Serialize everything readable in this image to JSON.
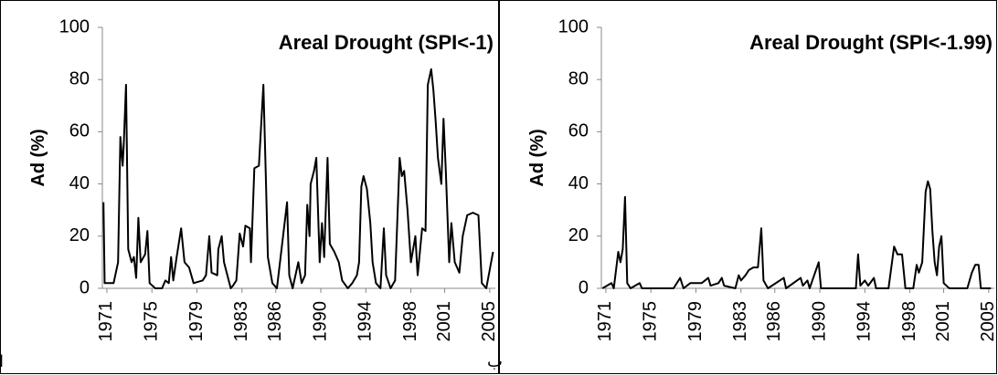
{
  "chart_data": [
    {
      "type": "line",
      "title": "Areal Drought (SPI<-1)",
      "ylabel": "Ad (%)",
      "panel_label": "الف",
      "color": "#000000",
      "xlim": [
        1970.6,
        2005.5
      ],
      "xticks": [
        1971,
        1975,
        1979,
        1983,
        1986,
        1990,
        1994,
        1998,
        2001,
        2005
      ],
      "ylim": [
        0,
        100
      ],
      "yticks": [
        0,
        20,
        40,
        60,
        80,
        100
      ],
      "x": [
        1970.7,
        1970.8,
        1971.6,
        1972.0,
        1972.2,
        1972.4,
        1972.5,
        1972.7,
        1972.9,
        1973.2,
        1973.4,
        1973.6,
        1973.8,
        1974.0,
        1974.4,
        1974.6,
        1974.8,
        1975.3,
        1975.9,
        1976.2,
        1976.5,
        1976.7,
        1976.9,
        1977.2,
        1977.6,
        1977.9,
        1978.3,
        1978.7,
        1979.5,
        1979.8,
        1980.1,
        1980.3,
        1980.8,
        1980.9,
        1981.2,
        1981.4,
        1981.7,
        1982.0,
        1982.2,
        1982.5,
        1982.8,
        1983.1,
        1983.3,
        1983.7,
        1983.8,
        1984.1,
        1984.5,
        1984.9,
        1985.1,
        1985.3,
        1985.7,
        1986.1,
        1987.0,
        1987.2,
        1987.5,
        1988.0,
        1988.3,
        1988.6,
        1988.8,
        1989.0,
        1989.1,
        1989.4,
        1989.6,
        1989.9,
        1990.1,
        1990.3,
        1990.6,
        1990.8,
        1991.2,
        1991.6,
        1991.9,
        1992.4,
        1992.8,
        1993.2,
        1993.4,
        1993.6,
        1993.8,
        1994.1,
        1994.4,
        1994.6,
        1994.9,
        1995.3,
        1995.6,
        1995.8,
        1996.2,
        1996.6,
        1997.0,
        1997.2,
        1997.4,
        1997.7,
        1998.0,
        1998.4,
        1998.6,
        1999.0,
        1999.3,
        1999.5,
        1999.8,
        2000.0,
        2000.2,
        2000.4,
        2000.7,
        2000.9,
        2001.1,
        2001.4,
        2001.6,
        2001.9,
        2002.3,
        2002.6,
        2003.0,
        2003.5,
        2004.0,
        2004.3,
        2004.7,
        2005.3
      ],
      "values": [
        33,
        2,
        2,
        10,
        58,
        47,
        55,
        78,
        15,
        10,
        12,
        4,
        27,
        10,
        13,
        22,
        2,
        0,
        0,
        3,
        2,
        12,
        3,
        12,
        23,
        10,
        8,
        2,
        3,
        5,
        20,
        6,
        5,
        15,
        20,
        10,
        5,
        0,
        1,
        3,
        21,
        16,
        24,
        23,
        10,
        46,
        47,
        78,
        45,
        12,
        2,
        0,
        33,
        5,
        0,
        10,
        2,
        5,
        32,
        20,
        40,
        45,
        50,
        10,
        25,
        12,
        50,
        17,
        14,
        10,
        3,
        0,
        2,
        5,
        10,
        39,
        43,
        38,
        25,
        10,
        2,
        0,
        23,
        5,
        0,
        3,
        50,
        43,
        45,
        30,
        10,
        20,
        5,
        23,
        22,
        78,
        84,
        76,
        64,
        50,
        40,
        65,
        45,
        10,
        25,
        10,
        6,
        20,
        28,
        29,
        28,
        2,
        0,
        14
      ]
    },
    {
      "type": "line",
      "title": "Areal Drought (SPI<-1.99)",
      "ylabel": "Ad (%)",
      "panel_label": "ب",
      "color": "#000000",
      "xlim": [
        1970.6,
        2005.5
      ],
      "xticks": [
        1971,
        1975,
        1979,
        1983,
        1986,
        1990,
        1994,
        1998,
        2001,
        2005
      ],
      "ylim": [
        0,
        100
      ],
      "yticks": [
        0,
        20,
        40,
        60,
        80,
        100
      ],
      "x": [
        1970.7,
        1971.5,
        1971.7,
        1972.1,
        1972.3,
        1972.5,
        1972.7,
        1972.9,
        1973.2,
        1974.0,
        1974.2,
        1977.0,
        1977.3,
        1977.6,
        1977.9,
        1978.5,
        1979.5,
        1980.1,
        1980.3,
        1981.0,
        1981.3,
        1981.5,
        1982.5,
        1982.8,
        1983.0,
        1983.4,
        1983.7,
        1984.1,
        1984.5,
        1984.8,
        1985.0,
        1985.4,
        1986.8,
        1987.0,
        1988.3,
        1988.5,
        1988.9,
        1989.1,
        1989.9,
        1990.1,
        1993.2,
        1993.4,
        1993.6,
        1994.0,
        1994.3,
        1994.8,
        1995.0,
        1996.1,
        1996.6,
        1996.9,
        1997.3,
        1997.6,
        1998.3,
        1998.6,
        1998.8,
        1999.1,
        1999.4,
        1999.6,
        1999.8,
        2000.0,
        2000.2,
        2000.4,
        2000.6,
        2000.8,
        2001.0,
        2001.5,
        2003.1,
        2003.5,
        2003.8,
        2004.1,
        2004.3,
        2005.2
      ],
      "values": [
        0,
        2,
        0,
        14,
        10,
        15,
        35,
        2,
        0,
        2,
        0,
        0,
        2,
        4,
        0,
        2,
        2,
        4,
        1,
        2,
        4,
        1,
        0,
        5,
        3,
        5,
        7,
        8,
        8,
        23,
        3,
        0,
        4,
        0,
        4,
        1,
        3,
        0,
        10,
        0,
        0,
        13,
        1,
        3,
        1,
        4,
        0,
        0,
        16,
        13,
        13,
        0,
        0,
        9,
        6,
        10,
        37,
        41,
        38,
        22,
        10,
        5,
        16,
        20,
        2,
        0,
        0,
        6,
        9,
        9,
        0,
        0
      ]
    }
  ]
}
